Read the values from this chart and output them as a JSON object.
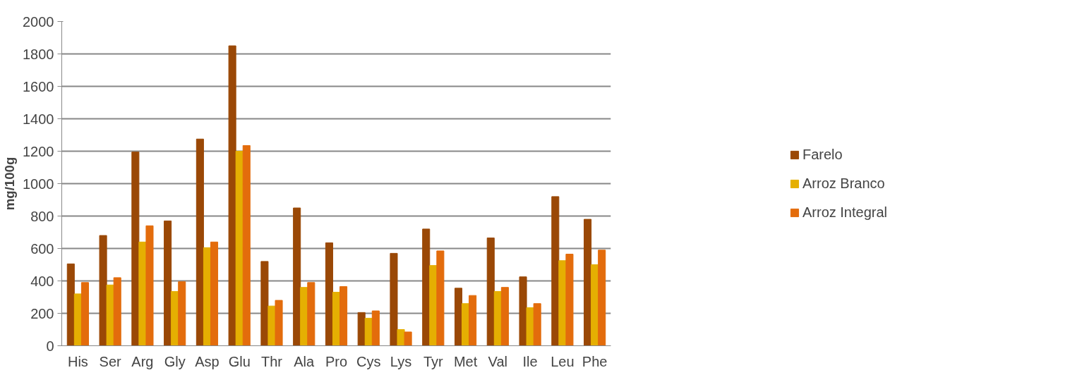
{
  "chart_data": {
    "type": "bar",
    "ylabel": "mg/100g",
    "categories": [
      "His",
      "Ser",
      "Arg",
      "Gly",
      "Asp",
      "Glu",
      "Thr",
      "Ala",
      "Pro",
      "Cys",
      "Lys",
      "Tyr",
      "Met",
      "Val",
      "Ile",
      "Leu",
      "Phe"
    ],
    "series": [
      {
        "name": "Farelo",
        "color": "#9a4806",
        "values": [
          505,
          680,
          1195,
          770,
          1275,
          1850,
          520,
          850,
          635,
          205,
          570,
          720,
          355,
          665,
          425,
          920,
          780
        ]
      },
      {
        "name": "Arroz Branco",
        "color": "#e5af02",
        "values": [
          320,
          375,
          640,
          335,
          605,
          1200,
          245,
          360,
          330,
          170,
          100,
          495,
          260,
          335,
          235,
          525,
          500
        ]
      },
      {
        "name": "Arroz Integral",
        "color": "#e36c0c",
        "values": [
          390,
          420,
          740,
          395,
          640,
          1235,
          280,
          390,
          365,
          215,
          85,
          585,
          310,
          360,
          260,
          565,
          590
        ]
      }
    ],
    "ylim": [
      0,
      2000
    ],
    "yticks": [
      0,
      200,
      400,
      600,
      800,
      1000,
      1200,
      1400,
      1600,
      1800,
      2000
    ],
    "grid": "y",
    "legend": "right"
  }
}
